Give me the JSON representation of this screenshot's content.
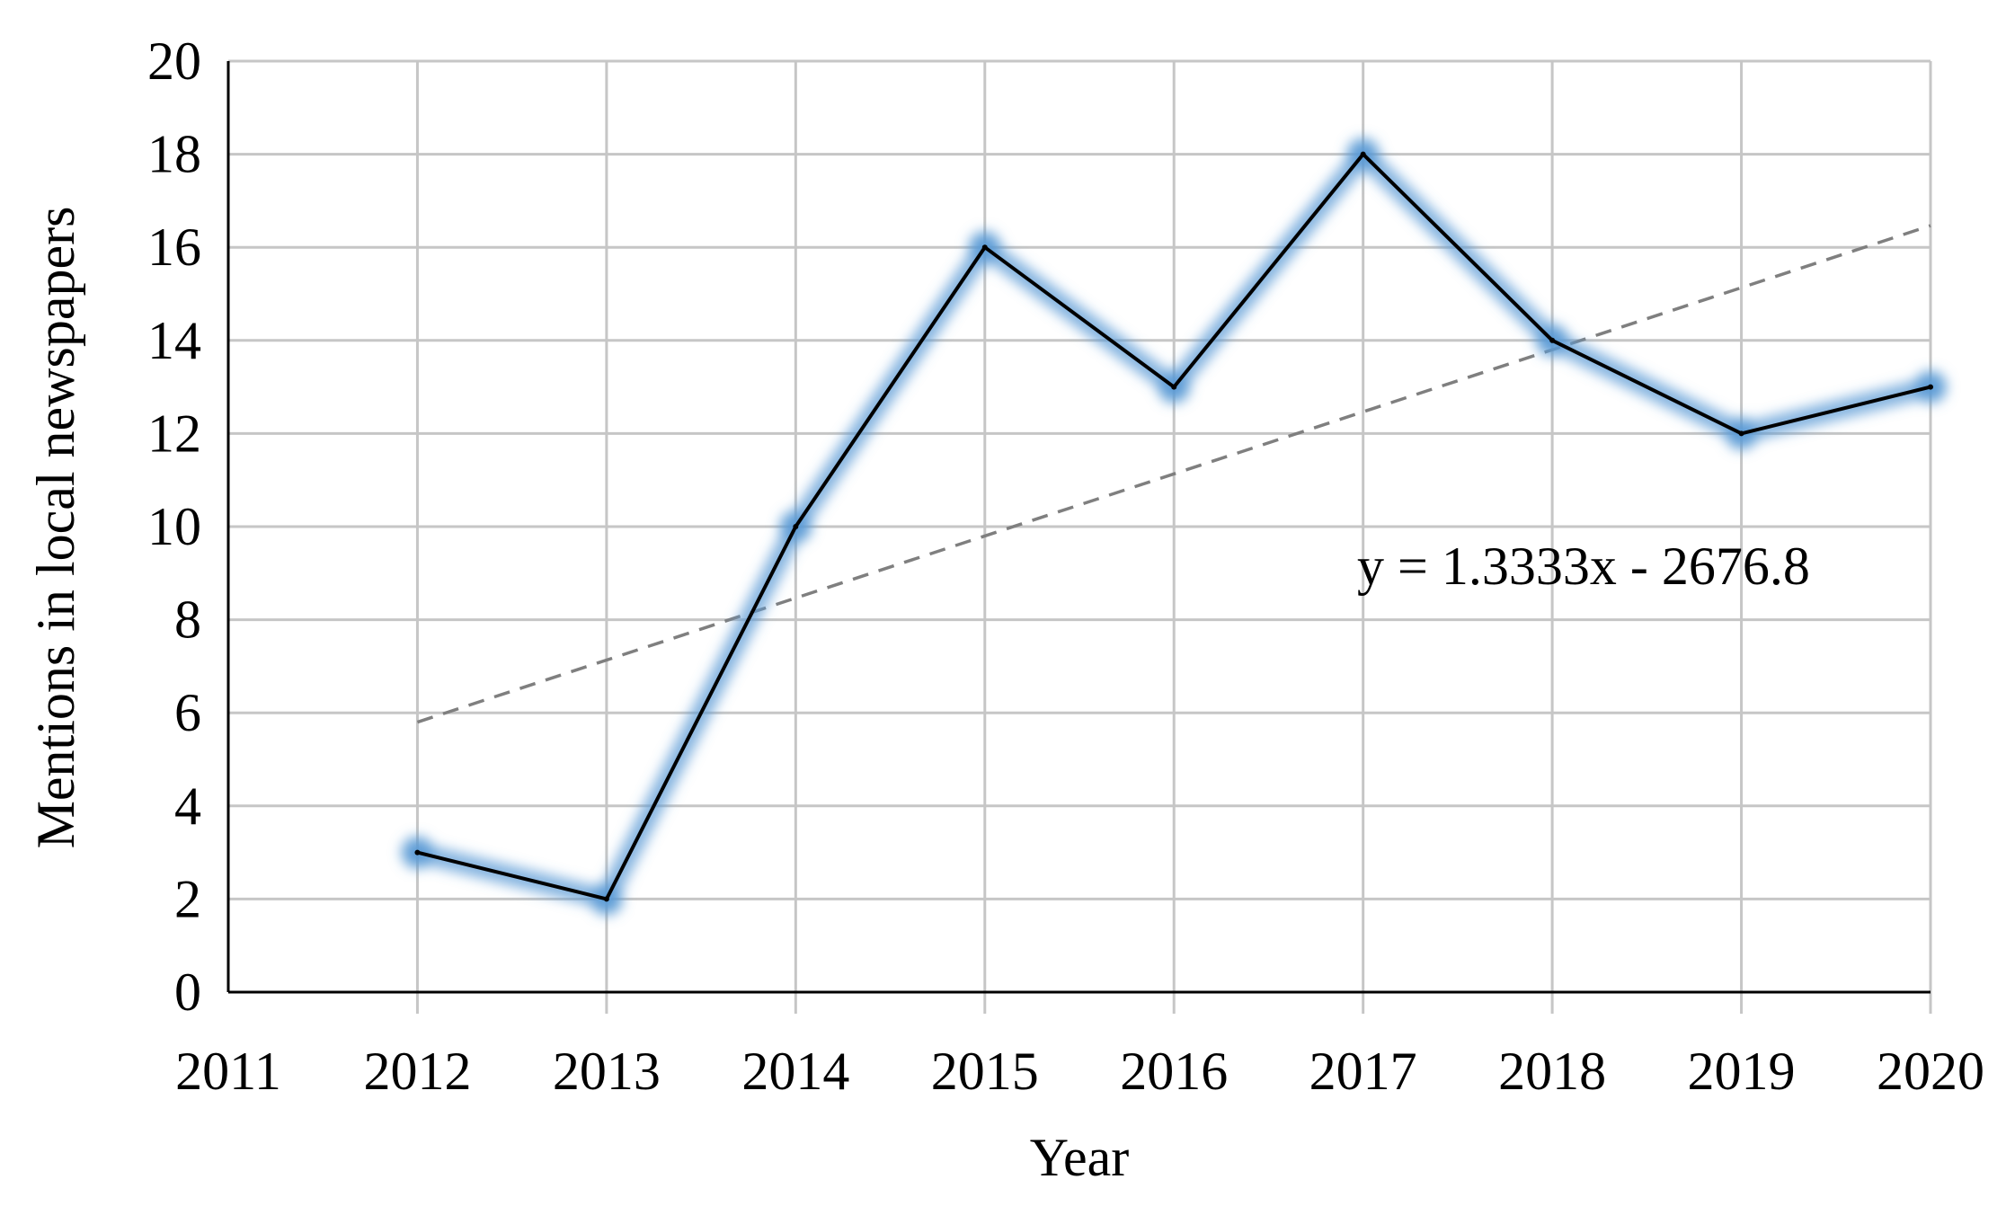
{
  "chart_data": {
    "type": "line",
    "title": "",
    "xlabel": "Year",
    "ylabel": "Mentions in local newspapers",
    "xlim": [
      2011,
      2020
    ],
    "ylim": [
      0,
      20
    ],
    "x_ticks": [
      "2011",
      "2012",
      "2013",
      "2014",
      "2015",
      "2016",
      "2017",
      "2018",
      "2019",
      "2020"
    ],
    "y_ticks": [
      "0",
      "2",
      "4",
      "6",
      "8",
      "10",
      "12",
      "14",
      "16",
      "18",
      "20"
    ],
    "grid": true,
    "legend": "none",
    "series": [
      {
        "x": [
          2012,
          2013,
          2014,
          2015,
          2016,
          2017,
          2018,
          2019,
          2020
        ],
        "values": [
          3,
          2,
          10,
          16,
          13,
          18,
          14,
          12,
          13
        ],
        "color": "#000000",
        "glow_color": "#5b9bd5"
      }
    ],
    "trendline": {
      "slope": 1.3333,
      "intercept": -2676.8,
      "x_range": [
        2012,
        2020
      ],
      "style": "dashed",
      "color": "#7f7f7f"
    },
    "annotations": [
      {
        "text": "y = 1.3333x - 2676.8"
      }
    ]
  }
}
